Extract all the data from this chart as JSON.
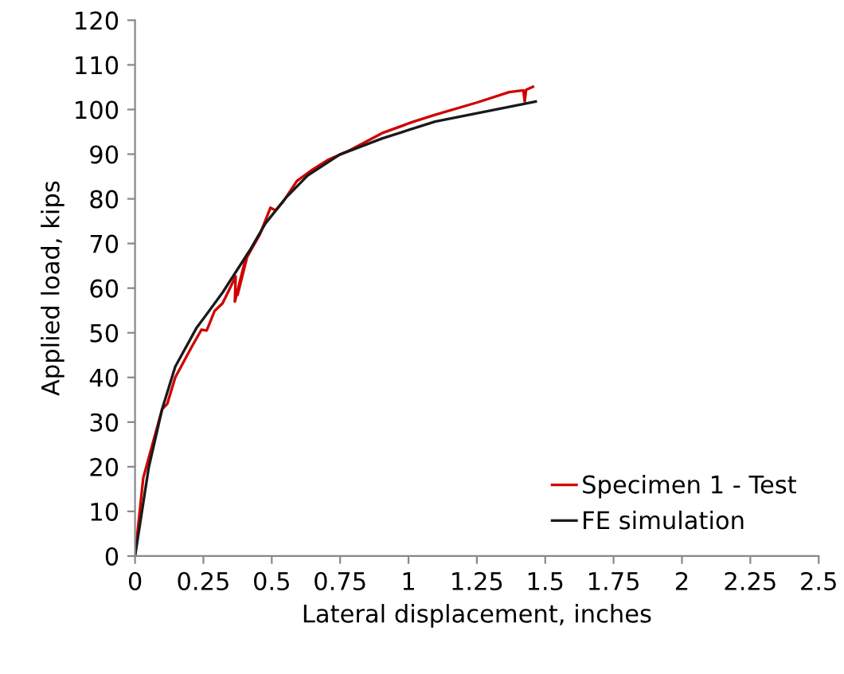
{
  "chart_data": {
    "type": "line",
    "xlabel": "Lateral displacement, inches",
    "ylabel": "Applied load, kips",
    "xlim": [
      0,
      2.5
    ],
    "xticks": [
      0,
      0.25,
      0.5,
      0.75,
      1,
      1.25,
      1.5,
      1.75,
      2,
      2.25,
      2.5
    ],
    "ylim": [
      0,
      120
    ],
    "yticks": [
      0,
      10,
      20,
      30,
      40,
      50,
      60,
      70,
      80,
      90,
      100,
      110,
      120
    ],
    "grid": false,
    "legend": "bottom right",
    "marker": "none",
    "line_style": "solid",
    "series": [
      {
        "name": "Specimen 1 - Test",
        "color": "#d00000",
        "x": [
          0,
          0.03,
          0.099,
          0.118,
          0.147,
          0.205,
          0.243,
          0.262,
          0.291,
          0.32,
          0.368,
          0.365,
          0.405,
          0.375,
          0.41,
          0.457,
          0.495,
          0.514,
          0.543,
          0.592,
          0.65,
          0.708,
          0.786,
          0.903,
          1.019,
          1.097,
          1.252,
          1.368,
          1.42,
          1.425,
          1.43,
          1.455
        ],
        "values": [
          0,
          17.5,
          32.9,
          34.1,
          40,
          46.6,
          50.7,
          50.5,
          54.9,
          56.6,
          62.6,
          57,
          66.8,
          58.5,
          67,
          72.1,
          78,
          77.4,
          79.5,
          84,
          86.6,
          88.8,
          90.9,
          94.7,
          97.3,
          98.8,
          101.6,
          103.9,
          104.3,
          101.8,
          104.4,
          105.1
        ]
      },
      {
        "name": "FE simulation",
        "color": "#1a1a1a",
        "x": [
          0,
          0.05,
          0.099,
          0.147,
          0.224,
          0.32,
          0.42,
          0.477,
          0.554,
          0.631,
          0.748,
          0.903,
          1.097,
          1.368,
          1.465
        ],
        "values": [
          0,
          19.8,
          32.9,
          42.4,
          51,
          59,
          68.5,
          74.5,
          80.4,
          85.2,
          89.9,
          93.5,
          97.3,
          100.6,
          101.8
        ]
      }
    ]
  }
}
